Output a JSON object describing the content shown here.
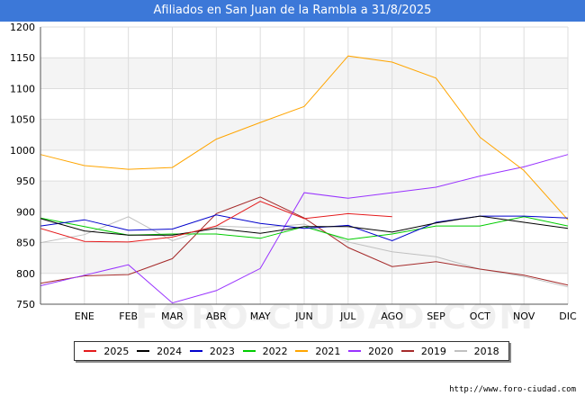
{
  "title": "Afiliados en San Juan de la Rambla a 31/8/2025",
  "source": "http://www.foro-ciudad.com",
  "watermark": "FORO-CIUDAD.COM",
  "chart_data": {
    "type": "line",
    "title": "Afiliados en San Juan de la Rambla a 31/8/2025",
    "xlabel": "",
    "ylabel": "",
    "ylim": [
      750,
      1200
    ],
    "yticks": [
      750,
      800,
      850,
      900,
      950,
      1000,
      1050,
      1100,
      1150,
      1200
    ],
    "categories": [
      "",
      "ENE",
      "FEB",
      "MAR",
      "ABR",
      "MAY",
      "JUN",
      "JUL",
      "AGO",
      "SEP",
      "OCT",
      "NOV",
      "DIC"
    ],
    "grid": true,
    "legend_position": "bottom",
    "series": [
      {
        "name": "2025",
        "color": "#e41a1c",
        "values": [
          873,
          852,
          851,
          859,
          877,
          917,
          889,
          897,
          892,
          null,
          null,
          null,
          null
        ]
      },
      {
        "name": "2024",
        "color": "#000000",
        "values": [
          889,
          869,
          862,
          862,
          873,
          865,
          876,
          876,
          867,
          882,
          893,
          883,
          873
        ]
      },
      {
        "name": "2023",
        "color": "#0000cc",
        "values": [
          877,
          887,
          870,
          872,
          895,
          881,
          873,
          878,
          853,
          883,
          893,
          893,
          890
        ]
      },
      {
        "name": "2022",
        "color": "#00cc00",
        "values": [
          890,
          876,
          862,
          864,
          864,
          857,
          876,
          855,
          864,
          877,
          877,
          892,
          877
        ]
      },
      {
        "name": "2021",
        "color": "#ffa500",
        "values": [
          993,
          975,
          969,
          972,
          1018,
          1045,
          1071,
          1153,
          1143,
          1117,
          1021,
          967,
          887
        ]
      },
      {
        "name": "2020",
        "color": "#9933ff",
        "values": [
          780,
          797,
          814,
          752,
          772,
          808,
          931,
          922,
          931,
          940,
          958,
          973,
          993
        ]
      },
      {
        "name": "2019",
        "color": "#a52a2a",
        "values": [
          784,
          796,
          798,
          824,
          897,
          924,
          890,
          842,
          811,
          819,
          807,
          797,
          781
        ]
      },
      {
        "name": "2018",
        "color": "#c0c0c0",
        "values": [
          850,
          863,
          892,
          853,
          877,
          874,
          880,
          851,
          835,
          827,
          807,
          795,
          778
        ]
      }
    ]
  }
}
